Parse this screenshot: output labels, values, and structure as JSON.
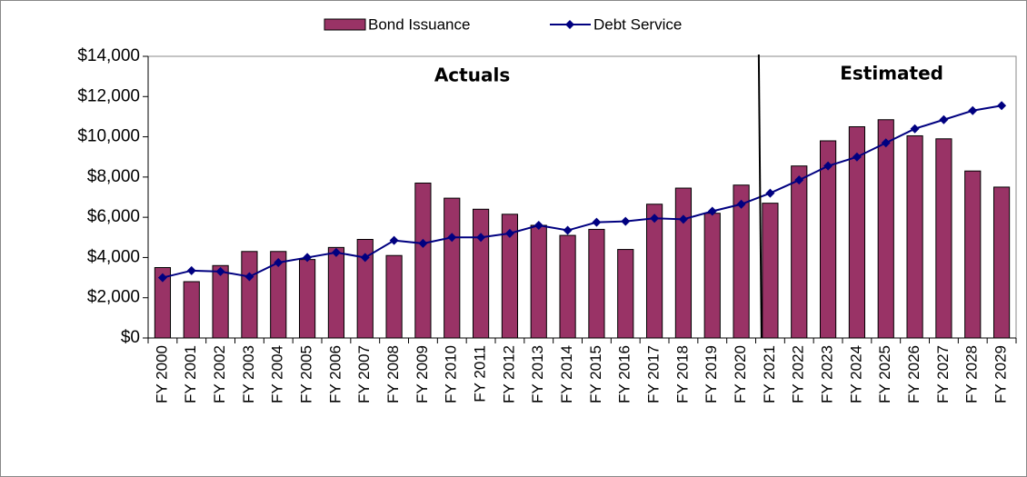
{
  "chart_data": {
    "type": "bar-line",
    "categories": [
      "FY 2000",
      "FY 2001",
      "FY 2002",
      "FY 2003",
      "FY 2004",
      "FY 2005",
      "FY 2006",
      "FY 2007",
      "FY 2008",
      "FY 2009",
      "FY 2010",
      "FY 2011",
      "FY 2012",
      "FY 2013",
      "FY 2014",
      "FY 2015",
      "FY 2016",
      "FY 2017",
      "FY 2018",
      "FY 2019",
      "FY 2020",
      "FY 2021",
      "FY 2022",
      "FY 2023",
      "FY 2024",
      "FY 2025",
      "FY 2026",
      "FY 2027",
      "FY 2028",
      "FY 2029"
    ],
    "series": [
      {
        "name": "Bond Issuance",
        "type": "bar",
        "color": "#993366",
        "values": [
          3500,
          2800,
          3600,
          4300,
          4300,
          3900,
          4500,
          4900,
          4100,
          7700,
          6950,
          6400,
          6150,
          5600,
          5100,
          5400,
          4400,
          6650,
          7450,
          6200,
          7600,
          6700,
          8550,
          9800,
          10500,
          10850,
          10050,
          9900,
          8300,
          7500
        ]
      },
      {
        "name": "Debt Service",
        "type": "line",
        "color": "#000080",
        "values": [
          3000,
          3350,
          3300,
          3050,
          3750,
          4000,
          4250,
          4000,
          4850,
          4700,
          5000,
          5000,
          5200,
          5600,
          5350,
          5750,
          5800,
          5950,
          5900,
          6300,
          6650,
          7200,
          7850,
          8550,
          9000,
          9700,
          10400,
          10850,
          11300,
          11550
        ]
      }
    ],
    "annotations": [
      "Actuals",
      "Estimated"
    ],
    "ylim": [
      0,
      14000
    ],
    "yticks": [
      {
        "value": 0,
        "label": "$0"
      },
      {
        "value": 2000,
        "label": "$2,000"
      },
      {
        "value": 4000,
        "label": "$4,000"
      },
      {
        "value": 6000,
        "label": "$6,000"
      },
      {
        "value": 8000,
        "label": "$8,000"
      },
      {
        "value": 10000,
        "label": "$10,000"
      },
      {
        "value": 12000,
        "label": "$12,000"
      },
      {
        "value": 14000,
        "label": "$14,000"
      }
    ]
  }
}
